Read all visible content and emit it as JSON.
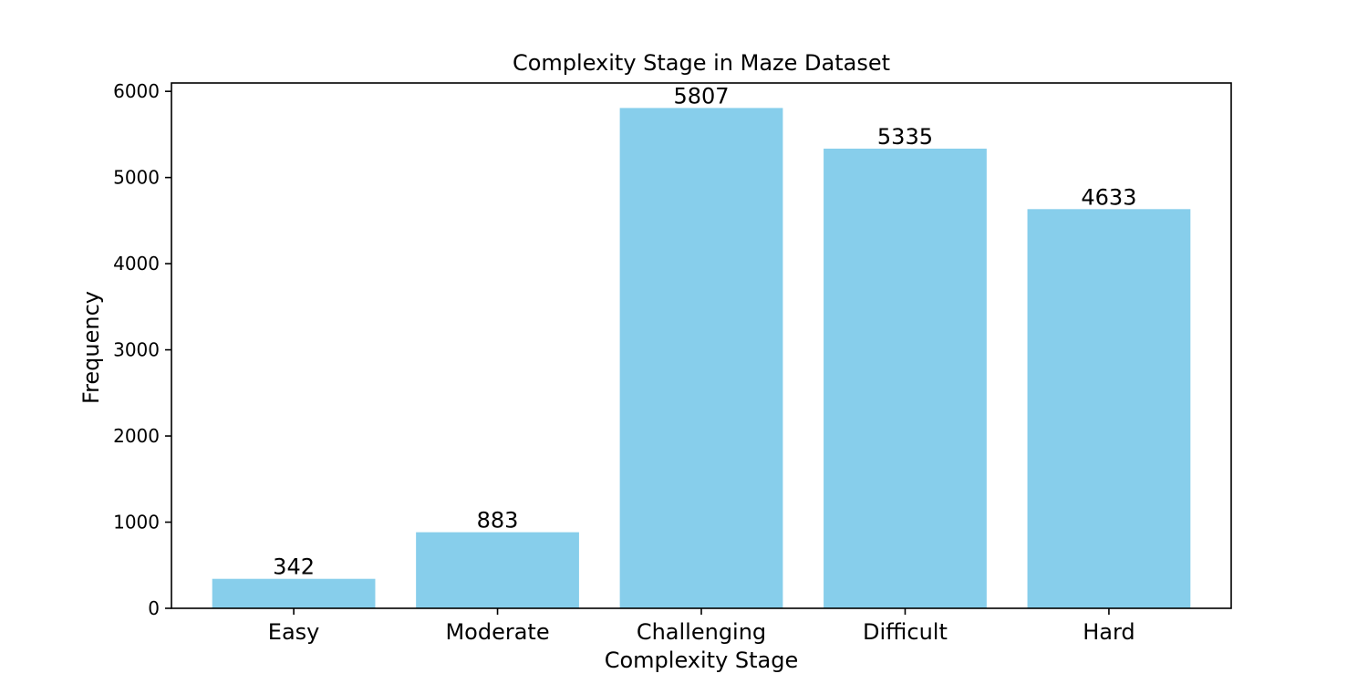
{
  "chart_data": {
    "type": "bar",
    "title": "Complexity Stage in Maze Dataset",
    "xlabel": "Complexity Stage",
    "ylabel": "Frequency",
    "categories": [
      "Easy",
      "Moderate",
      "Challenging",
      "Difficult",
      "Hard"
    ],
    "values": [
      342,
      883,
      5807,
      5335,
      4633
    ],
    "data_labels": [
      "342",
      "883",
      "5807",
      "5335",
      "4633"
    ],
    "yticks": [
      0,
      1000,
      2000,
      3000,
      4000,
      5000,
      6000
    ],
    "ytick_labels": [
      "0",
      "1000",
      "2000",
      "3000",
      "4000",
      "5000",
      "6000"
    ],
    "ylim": [
      0,
      6097
    ],
    "grid": false,
    "legend": "none",
    "bar_color": "#87CEEB"
  }
}
